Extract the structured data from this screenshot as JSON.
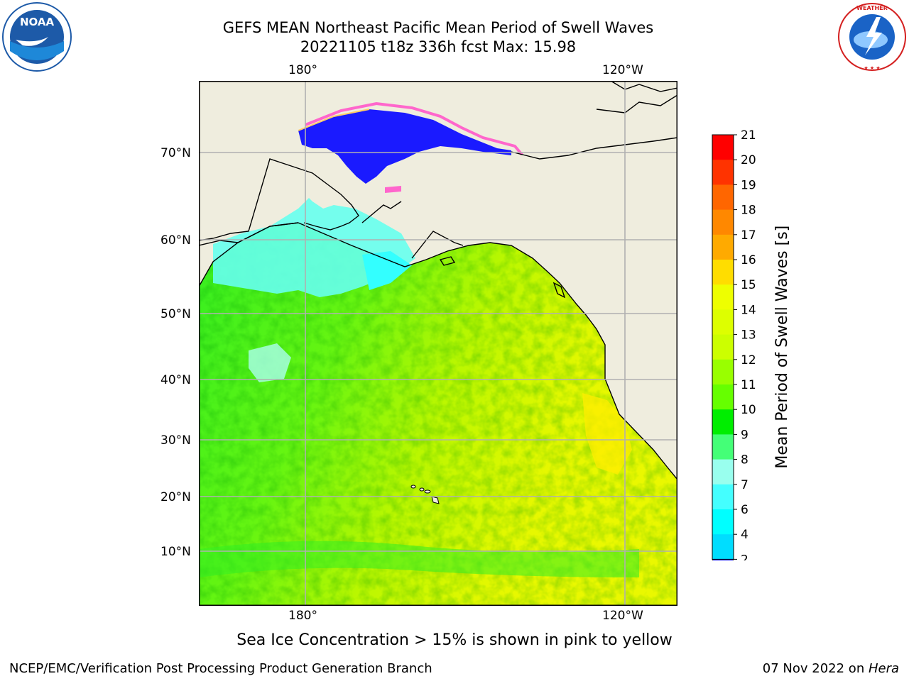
{
  "header": {
    "title_line1": "GEFS MEAN Northeast Pacific Mean Period of Swell Waves",
    "title_line2": "20221105 t18z 336h fcst   Max: 15.98"
  },
  "logos": {
    "left": {
      "icon": "noaa-logo",
      "text": "NOAA"
    },
    "right": {
      "icon": "nws-logo",
      "text": "NATIONAL WEATHER SERVICE"
    }
  },
  "map": {
    "lon_labels_top": [
      "180°",
      "120°W"
    ],
    "lon_labels_bottom": [
      "180°",
      "120°W"
    ],
    "lat_labels": [
      "70°N",
      "60°N",
      "50°N",
      "40°N",
      "30°N",
      "20°N",
      "10°N"
    ],
    "colors": {
      "land": "#efedde",
      "coast": "#000000",
      "grid": "#b0b0b0"
    }
  },
  "colorbar": {
    "label": "Mean Period of Swell Waves [s]",
    "ticks": [
      "21",
      "20",
      "19",
      "18",
      "17",
      "16",
      "15",
      "14",
      "13",
      "12",
      "11",
      "10",
      "9",
      "8",
      "7",
      "6",
      "4",
      "2"
    ],
    "colors": [
      "#ff0000",
      "#ff3300",
      "#ff6600",
      "#ff8800",
      "#ffaa00",
      "#ffdd00",
      "#eeff00",
      "#ddff00",
      "#ccff00",
      "#99ff00",
      "#66ff00",
      "#00ee00",
      "#44ff77",
      "#99ffee",
      "#44ffff",
      "#00ffff",
      "#00ddff",
      "#0077ff"
    ],
    "under_color": "#0000ff"
  },
  "caption": "Sea Ice Concentration > 15% is shown in pink to yellow",
  "footer": {
    "left": "NCEP/EMC/Verification Post Processing Product Generation Branch",
    "right_prefix": "07 Nov 2022 on ",
    "right_italic": "Hera"
  }
}
